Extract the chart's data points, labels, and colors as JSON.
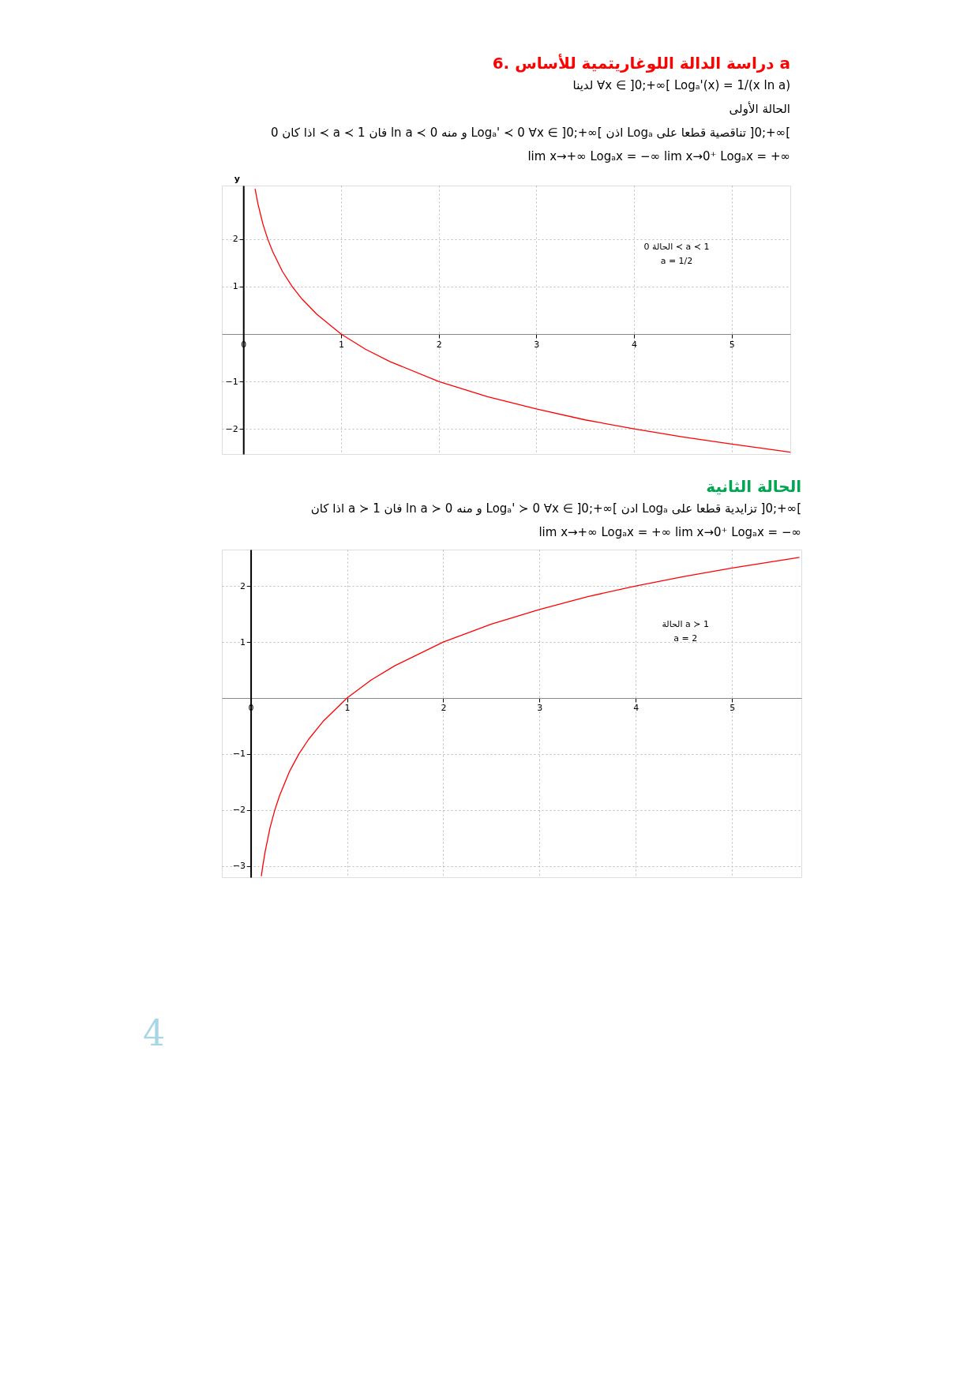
{
  "chart_data": [
    {
      "type": "line",
      "title": "6. دراسة الدالة اللوغاريتمية للأساس a",
      "subtitle": [
        "لدينا   ∀x ∈ ]0;+∞[      Logₐ'(x) = 1/(x ln a)",
        "الحالة الأولى",
        "اذا كان 0 ≺ a ≺ 1 فان ln a ≺ 0 و منه Logₐ' ≺ 0   ∀x ∈ ]0;+∞[ اذن Logₐ تناقصية قطعا على ]0;+∞[",
        "lim x→+∞ Logₐx = −∞          lim x→0⁺ Logₐx = +∞"
      ],
      "ylabel": "y",
      "x": [
        0.12,
        0.15,
        0.2,
        0.25,
        0.3,
        0.4,
        0.5,
        0.6,
        0.75,
        1,
        1.25,
        1.5,
        2,
        2.5,
        3,
        3.5,
        4,
        4.5,
        5,
        5.6
      ],
      "series": [
        {
          "color": "#ff0000",
          "values": [
            3.06,
            2.74,
            2.32,
            2,
            1.74,
            1.32,
            1,
            0.74,
            0.42,
            0,
            -0.32,
            -0.58,
            -1,
            -1.32,
            -1.58,
            -1.81,
            -2,
            -2.17,
            -2.32,
            -2.49
          ]
        }
      ],
      "xlim": [
        -0.22,
        5.6
      ],
      "ylim": [
        -2.53,
        3.13
      ],
      "xticks": [
        0,
        1,
        2,
        3,
        4,
        5
      ],
      "yticks": [
        -2,
        -1,
        1,
        2
      ],
      "annotations": [
        "الحالة 0 ≺ a ≺ 1",
        "a = 1/2"
      ],
      "grid": true,
      "marker": "none",
      "line_style": "solid"
    },
    {
      "type": "line",
      "title": "الحالة الثانية",
      "subtitle": [
        "اذا كان a ≻ 1 فان ln a ≻ 0 و منه Logₐ' ≻ 0   ∀x ∈ ]0;+∞[ ادن Logₐ تزايدية قطعا على ]0;+∞[",
        "lim x→+∞ Logₐx = +∞          lim x→0⁺ Logₐx = −∞"
      ],
      "x": [
        0.11,
        0.125,
        0.15,
        0.2,
        0.25,
        0.3,
        0.4,
        0.5,
        0.6,
        0.75,
        1,
        1.25,
        1.5,
        2,
        2.5,
        3,
        3.5,
        4,
        4.5,
        5,
        5.7
      ],
      "series": [
        {
          "color": "#ff0000",
          "values": [
            -3.18,
            -3,
            -2.74,
            -2.32,
            -2,
            -1.74,
            -1.32,
            -1,
            -0.74,
            -0.42,
            0,
            0.32,
            0.58,
            1,
            1.32,
            1.58,
            1.81,
            2,
            2.17,
            2.32,
            2.51
          ]
        }
      ],
      "xlim": [
        -0.3,
        5.72
      ],
      "ylim": [
        -3.2,
        2.65
      ],
      "xticks": [
        0,
        1,
        2,
        3,
        4,
        5
      ],
      "yticks": [
        -3,
        -2,
        -1,
        1,
        2
      ],
      "annotations": [
        "الحالة a ≻ 1",
        "a = 2",
        "4"
      ],
      "grid": true,
      "marker": "none",
      "line_style": "solid"
    }
  ]
}
